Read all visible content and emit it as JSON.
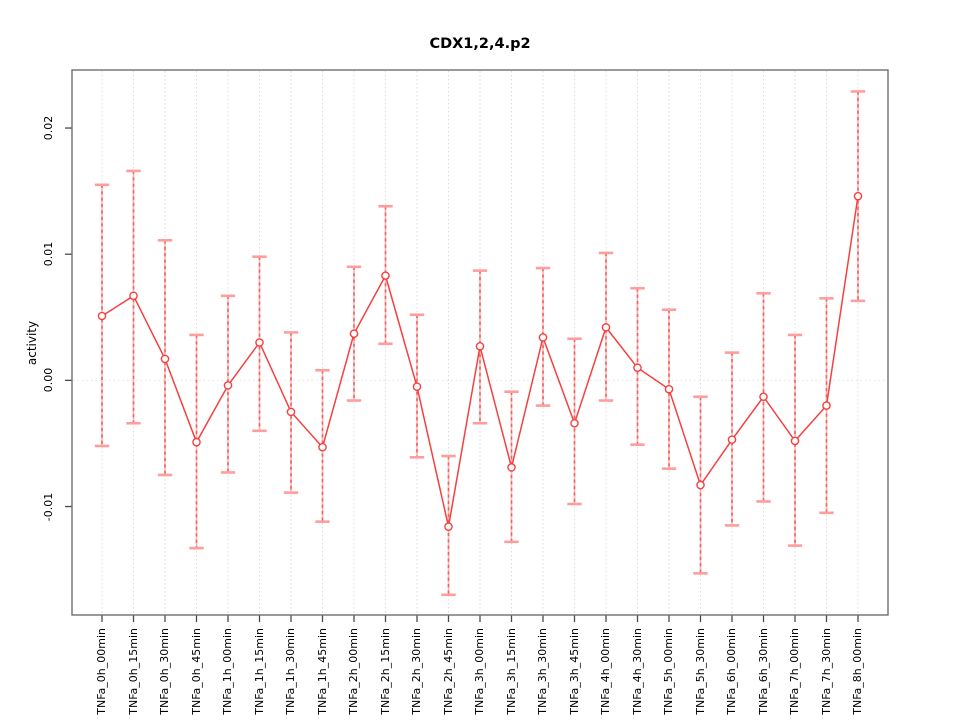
{
  "window": {
    "title": "CDX1,2,4.p2 activity plot"
  },
  "chart_data": {
    "type": "line",
    "title": "CDX1,2,4.p2",
    "ylabel": "activity",
    "xlabel": "",
    "legend": "none",
    "ylim": [
      -0.0186,
      0.0246
    ],
    "yticks": {
      "values": [
        0.02,
        0.01,
        0.0,
        -0.01
      ],
      "labels": [
        "0.02",
        "0.01",
        "0.00",
        "-0.01"
      ]
    },
    "grid": {
      "vertical_dotted_per_category": true,
      "horizontal_zero_line": true
    },
    "categories": [
      "TNFa_0h_00min",
      "TNFa_0h_15min",
      "TNFa_0h_30min",
      "TNFa_0h_45min",
      "TNFa_1h_00min",
      "TNFa_1h_15min",
      "TNFa_1h_30min",
      "TNFa_1h_45min",
      "TNFa_2h_00min",
      "TNFa_2h_15min",
      "TNFa_2h_30min",
      "TNFa_2h_45min",
      "TNFa_3h_00min",
      "TNFa_3h_15min",
      "TNFa_3h_30min",
      "TNFa_3h_45min",
      "TNFa_4h_00min",
      "TNFa_4h_30min",
      "TNFa_5h_00min",
      "TNFa_5h_30min",
      "TNFa_6h_00min",
      "TNFa_6h_30min",
      "TNFa_7h_00min",
      "TNFa_7h_30min",
      "TNFa_8h_00min"
    ],
    "series": [
      {
        "name": "activity",
        "marker": "open-circle",
        "values": [
          0.0051,
          0.0067,
          0.0017,
          -0.0049,
          -0.0004,
          0.003,
          -0.0025,
          -0.0053,
          0.0037,
          0.0083,
          -0.0005,
          -0.0116,
          0.0027,
          -0.0069,
          0.0034,
          -0.0034,
          0.0042,
          0.001,
          -0.0007,
          -0.0083,
          -0.0047,
          -0.0013,
          -0.0048,
          -0.002,
          0.0146
        ],
        "error_high": [
          0.0155,
          0.0166,
          0.0111,
          0.0036,
          0.0067,
          0.0098,
          0.0038,
          0.0008,
          0.009,
          0.0138,
          0.0052,
          -0.006,
          0.0087,
          -0.0009,
          0.0089,
          0.0033,
          0.0101,
          0.0073,
          0.0056,
          -0.0013,
          0.0022,
          0.0069,
          0.0036,
          0.0065,
          0.0229
        ],
        "error_low": [
          -0.0052,
          -0.0034,
          -0.0075,
          -0.0133,
          -0.0073,
          -0.004,
          -0.0089,
          -0.0112,
          -0.0016,
          0.0029,
          -0.0061,
          -0.017,
          -0.0034,
          -0.0128,
          -0.002,
          -0.0098,
          -0.0016,
          -0.0051,
          -0.007,
          -0.0153,
          -0.0115,
          -0.0096,
          -0.0131,
          -0.0105,
          0.0063
        ]
      }
    ],
    "colors": {
      "series_line": "#f54040",
      "marker_stroke": "#f54040",
      "marker_fill": "#ffffff",
      "errorbar_stem_solid": "#ffb3b3",
      "errorbar_stem_dash": "#f26060",
      "errorbar_cap": "#ff9d9d",
      "gridline": "#dcdcdc",
      "zero_line": "#e2e2e2",
      "plot_border": "#6e6e6e",
      "axis_tick": "#4a4a4a",
      "text": "#000000"
    }
  }
}
